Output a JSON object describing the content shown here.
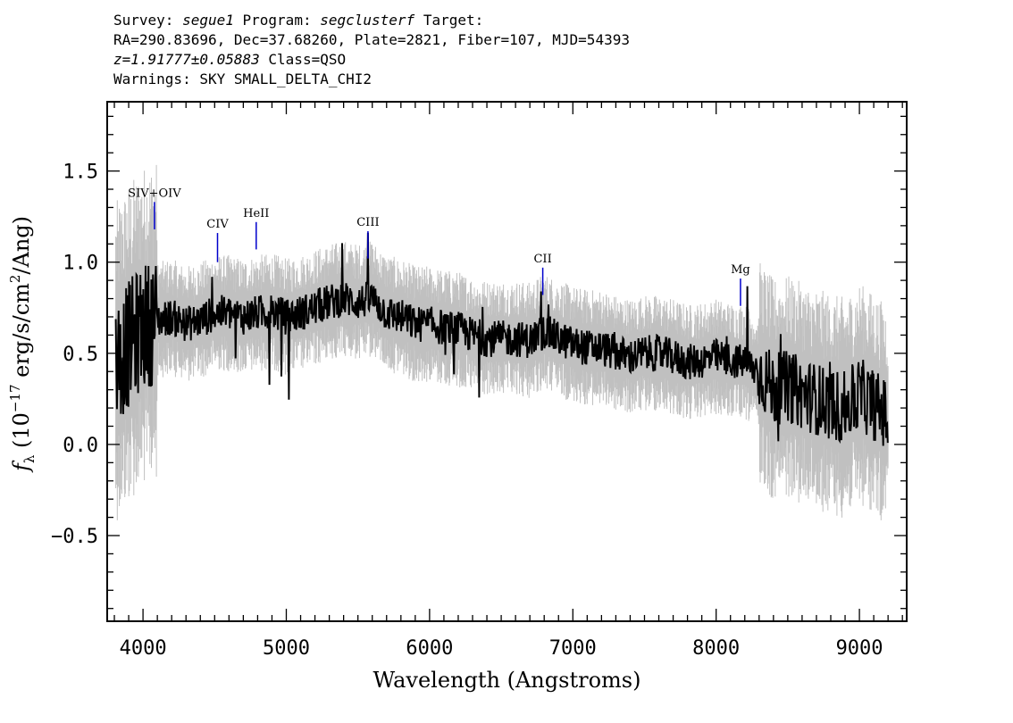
{
  "header": {
    "survey_label": "Survey:",
    "survey": "segue1",
    "program_label": "Program:",
    "program": "segclusterf",
    "target_label": "Target:",
    "line2": "RA=290.83696, Dec=37.68260, Plate=2821, Fiber=107, MJD=54393",
    "redshift": "z=1.91777±0.05883",
    "class_text": "Class=QSO",
    "warnings": "Warnings: SKY SMALL_DELTA_CHI2"
  },
  "chart_data": {
    "type": "line",
    "xlabel": "Wavelength (Angstroms)",
    "ylabel": "f_λ (10^-17 erg/s/cm²/Ang)",
    "xlim": [
      3750,
      9330
    ],
    "ylim": [
      -0.97,
      1.88
    ],
    "x_ticks": [
      "4000",
      "5000",
      "6000",
      "7000",
      "8000",
      "9000"
    ],
    "y_ticks": [
      "−0.5",
      "0.0",
      "0.5",
      "1.0",
      "1.5"
    ],
    "x_tick_values": [
      4000,
      5000,
      6000,
      7000,
      8000,
      9000
    ],
    "y_tick_values": [
      -0.5,
      0.0,
      0.5,
      1.0,
      1.5
    ],
    "colors": {
      "flux": "#000000",
      "error": "#c0c0c0",
      "lines": "#0000cc"
    },
    "series": [
      {
        "x": [
          3810,
          3900,
          4000,
          4100,
          4200,
          4300,
          4400,
          4500,
          4600,
          4700,
          4800,
          4900,
          5000,
          5100,
          5200,
          5300,
          5400,
          5500,
          5600,
          5700,
          5800,
          5900,
          6000,
          6100,
          6200,
          6300,
          6400,
          6500,
          6600,
          6700,
          6800,
          6900,
          7000,
          7100,
          7200,
          7300,
          7400,
          7500,
          7600,
          7700,
          7800,
          7900,
          8000,
          8100,
          8200,
          8300,
          8400,
          8500,
          8600,
          8700,
          8800,
          8900,
          9000,
          9100,
          9200
        ],
        "y": [
          0.45,
          0.55,
          0.65,
          0.68,
          0.7,
          0.66,
          0.68,
          0.72,
          0.72,
          0.7,
          0.72,
          0.73,
          0.7,
          0.72,
          0.75,
          0.78,
          0.8,
          0.78,
          0.8,
          0.72,
          0.7,
          0.66,
          0.66,
          0.64,
          0.63,
          0.6,
          0.58,
          0.58,
          0.58,
          0.57,
          0.62,
          0.58,
          0.55,
          0.53,
          0.53,
          0.5,
          0.48,
          0.5,
          0.5,
          0.48,
          0.45,
          0.46,
          0.48,
          0.46,
          0.45,
          0.4,
          0.3,
          0.32,
          0.28,
          0.25,
          0.22,
          0.2,
          0.28,
          0.22,
          0.15
        ]
      }
    ],
    "lines": [
      {
        "label": "SIV+OIV",
        "x": 4080,
        "y_top": 1.33,
        "y_bottom": 1.18
      },
      {
        "label": "CIV",
        "x": 4520,
        "y_top": 1.16,
        "y_bottom": 1.0
      },
      {
        "label": "HeII",
        "x": 4790,
        "y_top": 1.22,
        "y_bottom": 1.07
      },
      {
        "label": "CIII",
        "x": 5570,
        "y_top": 1.17,
        "y_bottom": 1.02
      },
      {
        "label": "CII",
        "x": 6790,
        "y_top": 0.97,
        "y_bottom": 0.82
      },
      {
        "label": "Mg",
        "x": 8170,
        "y_top": 0.91,
        "y_bottom": 0.76
      }
    ]
  }
}
